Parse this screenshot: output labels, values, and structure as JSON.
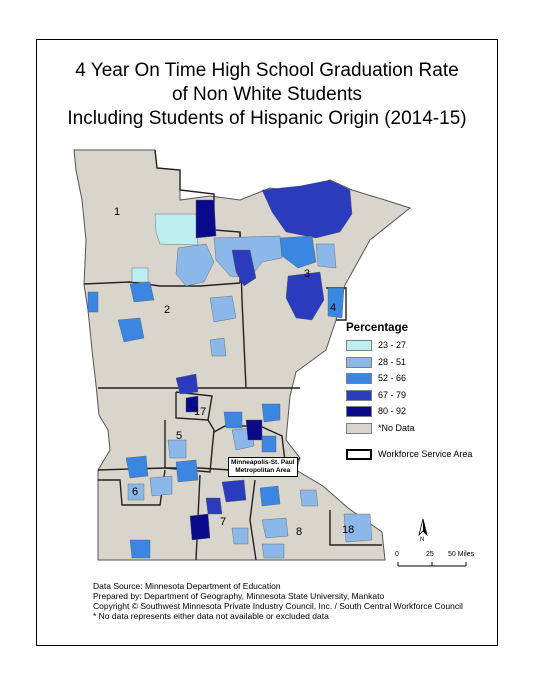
{
  "title_lines": [
    "4 Year On Time High School Graduation Rate",
    "of Non White Students",
    "Including Students of Hispanic Origin (2014-15)"
  ],
  "legend": {
    "title": "Percentage",
    "items": [
      {
        "label": "23 - 27",
        "color": "#bdeef2"
      },
      {
        "label": "28 - 51",
        "color": "#8bb8e8"
      },
      {
        "label": "52 - 66",
        "color": "#3b86e0"
      },
      {
        "label": "67 - 79",
        "color": "#2b3bbd"
      },
      {
        "label": "80 - 92",
        "color": "#0a0a8a"
      },
      {
        "label": "*No Data",
        "color": "#d8d5cc"
      }
    ],
    "boundary_label": "Workforce Service Area"
  },
  "regions": {
    "r1": "1",
    "r2": "2",
    "r3": "3",
    "r4": "4",
    "r5": "5",
    "r6": "6",
    "r7": "7",
    "r8": "8",
    "r17": "17",
    "r18": "18"
  },
  "metro_label_line1": "Minneapolis-St. Paul",
  "metro_label_line2": "Metropolitan Area",
  "scale": {
    "zero": "0",
    "mid": "25",
    "end": "50 Miles"
  },
  "north": "N",
  "notes": [
    "Data Source: Minnesota Department of Education",
    "Prepared by: Department of Geography, Minnesota State University, Mankato",
    "Copyright © Southwest Minnesota Private Industry Council, Inc.  / South Central Workforce Council",
    "* No data represents either data not available or excluded data"
  ]
}
